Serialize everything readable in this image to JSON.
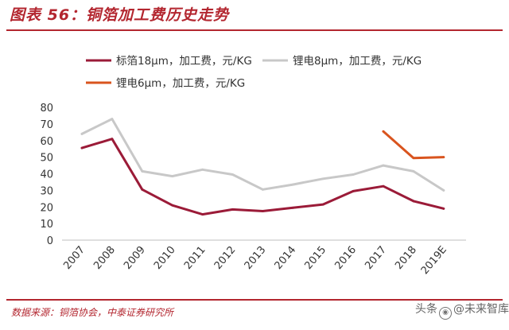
{
  "header": {
    "title": "图表 56：铜箔加工费历史走势"
  },
  "footer": {
    "source": "数据来源：铜箔协会，中泰证券研究所",
    "watermark_prefix": "头条",
    "watermark_name": "@未来智库"
  },
  "chart_data": {
    "type": "line",
    "title": "图表 56：铜箔加工费历史走势",
    "xlabel": "",
    "ylabel": "",
    "categories": [
      "2007",
      "2008",
      "2009",
      "2010",
      "2011",
      "2012",
      "2013",
      "2014",
      "2015",
      "2016",
      "2017",
      "2018",
      "2019E"
    ],
    "ylim": [
      0,
      80
    ],
    "yticks": [
      0,
      10,
      20,
      30,
      40,
      50,
      60,
      70,
      80
    ],
    "grid": false,
    "legend_position": "top",
    "series": [
      {
        "name": "标箔18μm，加工费，元/KG",
        "color": "#9b1b38",
        "values": [
          55.5,
          61,
          30.5,
          21,
          15.5,
          18.5,
          17.5,
          19.5,
          21.5,
          29.5,
          32.5,
          23.5,
          19
        ]
      },
      {
        "name": "锂电8μm，加工费，元/KG",
        "color": "#c8c8c8",
        "values": [
          64,
          73,
          41.5,
          38.5,
          42.5,
          39.5,
          30.5,
          33.5,
          37,
          39.5,
          45,
          41.5,
          30
        ]
      },
      {
        "name": "锂电6μm，加工费，元/KG",
        "color": "#d9541e",
        "values": [
          null,
          null,
          null,
          null,
          null,
          null,
          null,
          null,
          null,
          null,
          65.5,
          49.5,
          50
        ]
      }
    ]
  }
}
